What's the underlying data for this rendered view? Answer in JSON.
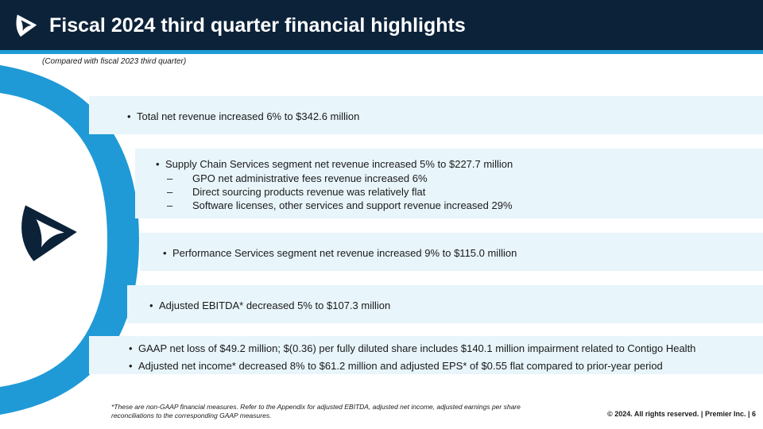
{
  "header": {
    "title": "Fiscal 2024 third quarter financial highlights"
  },
  "subtitle": "(Compared with fiscal 2023 third quarter)",
  "bands": [
    {
      "bullets": [
        "Total net revenue increased 6% to $342.6 million"
      ]
    },
    {
      "bullets": [
        "Supply Chain Services segment net revenue increased 5% to $227.7 million"
      ],
      "subbullets": [
        "GPO net administrative fees revenue increased 6%",
        "Direct sourcing products revenue was relatively flat",
        "Software licenses, other services and support revenue increased 29%"
      ]
    },
    {
      "bullets": [
        "Performance Services segment net revenue increased 9% to $115.0 million"
      ]
    },
    {
      "bullets": [
        "Adjusted EBITDA* decreased 5% to $107.3 million"
      ]
    },
    {
      "bullets": [
        "GAAP net loss of $49.2 million; $(0.36) per fully diluted share includes $140.1 million impairment related to Contigo Health",
        "Adjusted net income* decreased 8% to $61.2 million and adjusted EPS* of $0.55 flat compared to prior-year period"
      ]
    }
  ],
  "footnote": "*These are non-GAAP financial measures. Refer to the Appendix for adjusted EBITDA, adjusted net income, adjusted earnings per share reconciliations to the corresponding GAAP measures.",
  "copyright": "© 2024. All rights reserved.  |  Premier Inc.  |  6",
  "colors": {
    "header_bg": "#0b2239",
    "accent": "#1f9ad6",
    "band_bg": "#e8f5fb"
  },
  "icons": {
    "header_logo": "premier-logo-icon",
    "side_logo": "premier-logo-icon"
  }
}
